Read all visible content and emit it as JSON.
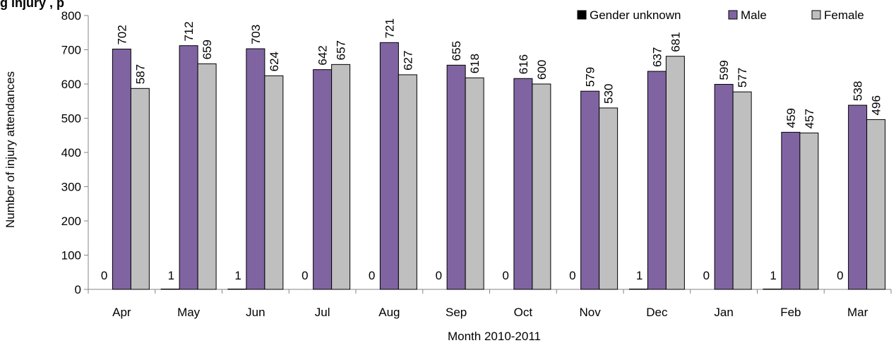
{
  "chart_data": {
    "type": "bar",
    "title": "g                  injury        ,  p",
    "xlabel": "Month 2010-2011",
    "ylabel": "Number of injury attendances",
    "ylim": [
      0,
      800
    ],
    "yticks": [
      0,
      100,
      200,
      300,
      400,
      500,
      600,
      700,
      800
    ],
    "grid": false,
    "legend_position": "top-right",
    "categories": [
      "Apr",
      "May",
      "Jun",
      "Jul",
      "Aug",
      "Sep",
      "Oct",
      "Nov",
      "Dec",
      "Jan",
      "Feb",
      "Mar"
    ],
    "series": [
      {
        "name": "Gender unknown",
        "color": "#000000",
        "values": [
          0,
          1,
          1,
          0,
          0,
          0,
          0,
          0,
          1,
          0,
          1,
          0
        ]
      },
      {
        "name": "Male",
        "color": "#8064A2",
        "values": [
          702,
          712,
          703,
          642,
          721,
          655,
          616,
          579,
          637,
          599,
          459,
          538
        ]
      },
      {
        "name": "Female",
        "color": "#BFBFBF",
        "values": [
          587,
          659,
          624,
          657,
          627,
          618,
          600,
          530,
          681,
          577,
          457,
          496
        ]
      }
    ]
  }
}
